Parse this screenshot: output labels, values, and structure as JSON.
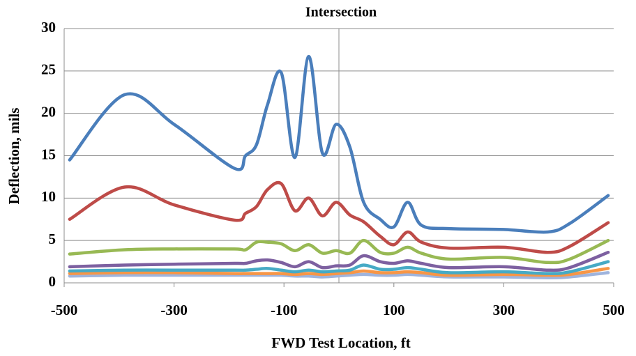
{
  "chart_data": {
    "type": "line",
    "title": "Intersection",
    "x_label": "FWD Test Location, ft",
    "y_label": "Deflection, mils",
    "x": [
      -490,
      -390,
      -300,
      -190,
      -170,
      -150,
      -130,
      -105,
      -80,
      -55,
      -30,
      -5,
      20,
      45,
      75,
      100,
      125,
      150,
      200,
      300,
      380,
      420,
      490
    ],
    "series": [
      {
        "color": "#4a7ebb",
        "values": [
          14.5,
          22.2,
          18.7,
          13.5,
          15,
          16.3,
          21,
          24.8,
          14.8,
          26.7,
          15.3,
          18.7,
          16,
          9.5,
          7.5,
          6.6,
          9.5,
          6.8,
          6.4,
          6.3,
          6,
          7,
          10.3
        ]
      },
      {
        "color": "#be4b48",
        "values": [
          7.5,
          11.3,
          9.2,
          7.4,
          8.2,
          9,
          11,
          11.7,
          8.5,
          10,
          7.9,
          9.5,
          8,
          7.2,
          5.5,
          4.5,
          6,
          4.8,
          4.1,
          4.2,
          3.6,
          4.3,
          7.1
        ]
      },
      {
        "color": "#98b954",
        "values": [
          3.4,
          3.9,
          4,
          4,
          3.9,
          4.8,
          4.8,
          4.6,
          3.8,
          4.5,
          3.5,
          3.8,
          3.5,
          5,
          3.6,
          3.5,
          4.2,
          3.5,
          2.8,
          3,
          2.4,
          2.8,
          5
        ]
      },
      {
        "color": "#7d60a0",
        "values": [
          1.9,
          2.1,
          2.2,
          2.3,
          2.3,
          2.6,
          2.7,
          2.4,
          1.9,
          2.5,
          1.8,
          2,
          2.1,
          3.2,
          2.5,
          2.3,
          2.6,
          2.3,
          1.8,
          1.9,
          1.5,
          1.8,
          3.6
        ]
      },
      {
        "color": "#46aac5",
        "values": [
          1.4,
          1.5,
          1.5,
          1.5,
          1.5,
          1.6,
          1.7,
          1.5,
          1.3,
          1.5,
          1.3,
          1.4,
          1.5,
          2.1,
          1.6,
          1.6,
          1.8,
          1.6,
          1.2,
          1.3,
          1.1,
          1.3,
          2.5
        ]
      },
      {
        "color": "#f79646",
        "values": [
          1.1,
          1.2,
          1.2,
          1.1,
          1.1,
          1.1,
          1.1,
          1.1,
          1,
          1.1,
          1,
          1.1,
          1.2,
          1.4,
          1.2,
          1.2,
          1.3,
          1.2,
          0.9,
          1,
          0.9,
          1,
          1.7
        ]
      },
      {
        "color": "#9fb4dd",
        "values": [
          0.8,
          0.9,
          0.9,
          0.9,
          0.9,
          0.9,
          0.9,
          0.9,
          0.8,
          0.8,
          0.7,
          0.8,
          0.9,
          1,
          0.9,
          0.9,
          1,
          0.9,
          0.7,
          0.7,
          0.6,
          0.7,
          1.2
        ]
      }
    ],
    "xlim": [
      -500,
      500
    ],
    "xticks": [
      -500,
      -300,
      -100,
      100,
      300,
      500
    ],
    "ylim": [
      0,
      30
    ],
    "yticks": [
      0,
      5,
      10,
      15,
      20,
      25,
      30
    ],
    "reference_lines_x": [
      0
    ],
    "grid": true,
    "smooth": true
  }
}
